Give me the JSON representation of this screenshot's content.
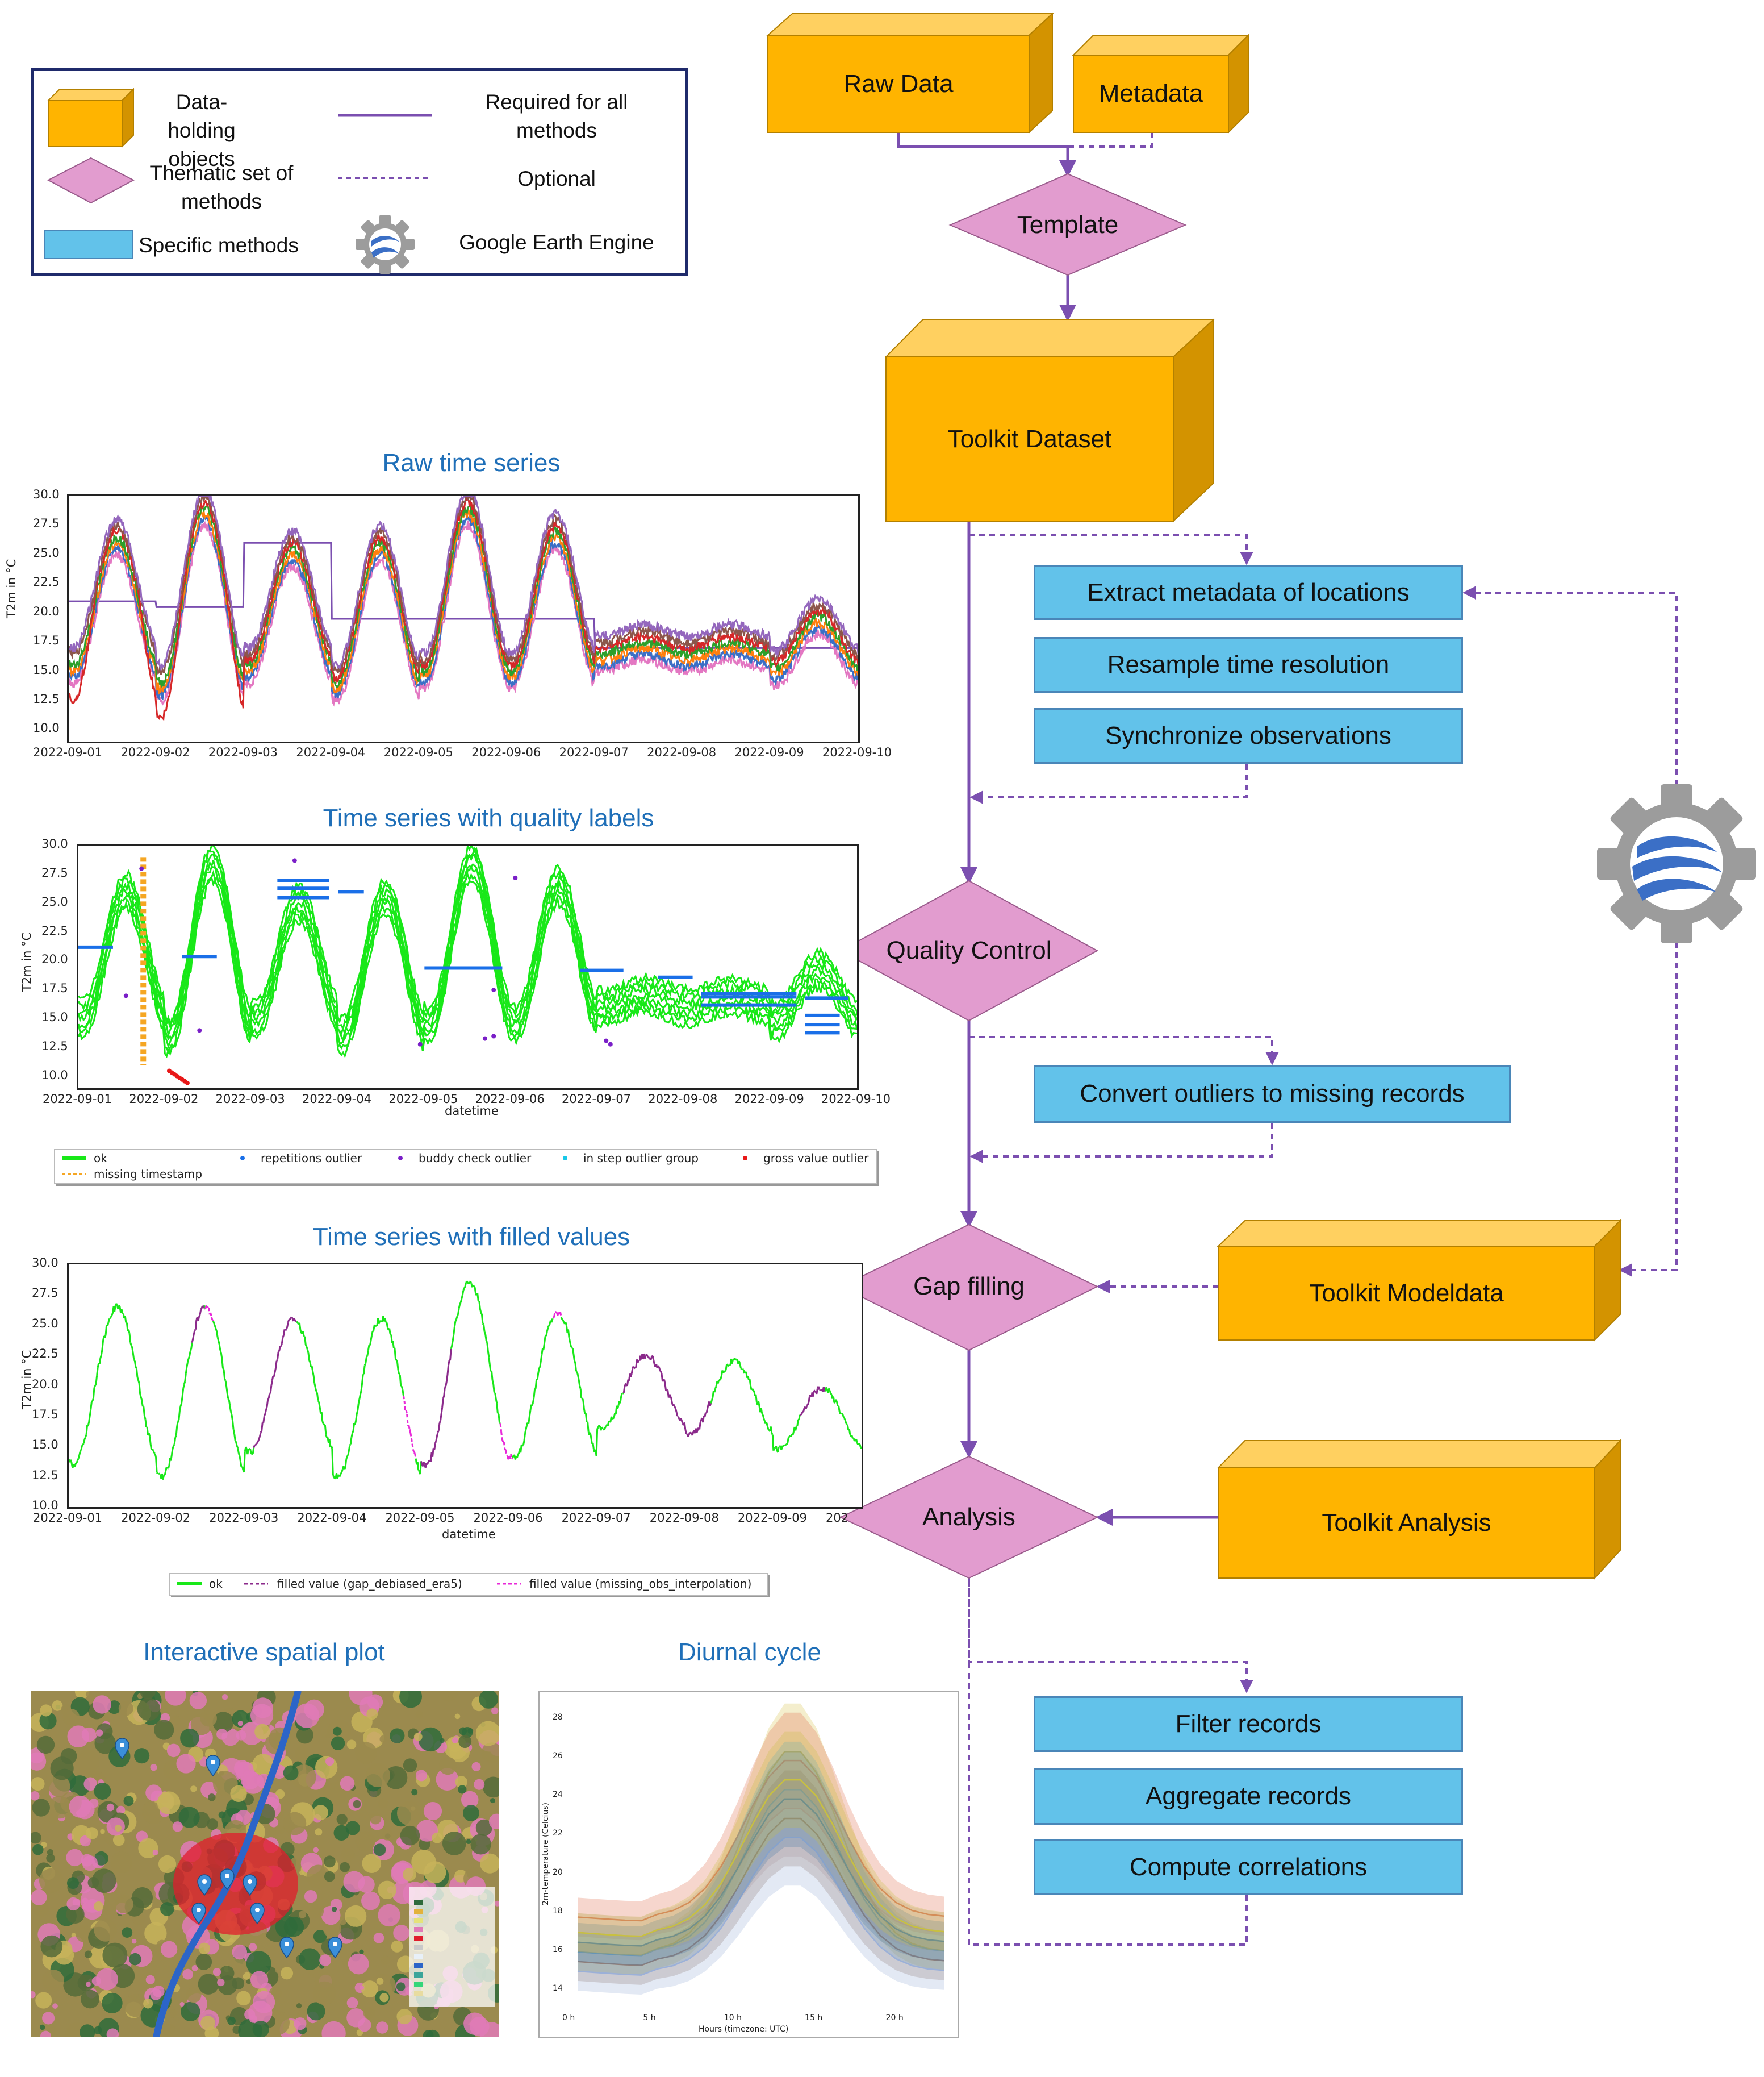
{
  "legend": {
    "data_holding": "Data-holding\nobjects",
    "required": "Required for all\nmethods",
    "thematic": "Thematic set of\nmethods",
    "optional": "Optional",
    "specific": "Specific methods",
    "gee": "Google Earth Engine"
  },
  "nodes": {
    "raw_data": "Raw Data",
    "metadata": "Metadata",
    "template": "Template",
    "toolkit_dataset": "Toolkit Dataset",
    "extract_metadata": "Extract metadata of locations",
    "resample": "Resample time resolution",
    "synchronize": "Synchronize observations",
    "quality_control": "Quality Control",
    "convert_outliers": "Convert outliers to missing records",
    "gap_filling": "Gap filling",
    "toolkit_modeldata": "Toolkit Modeldata",
    "analysis": "Analysis",
    "toolkit_analysis": "Toolkit Analysis",
    "filter_records": "Filter records",
    "aggregate_records": "Aggregate records",
    "compute_correlations": "Compute correlations"
  },
  "colors": {
    "orange_front": "#ffb400",
    "orange_top": "#ffd060",
    "orange_side": "#d39300",
    "pink": "#e29ccf",
    "blue": "#62c2ea",
    "purple": "#7b4fb0",
    "caption": "#1f6fb8"
  },
  "captions": {
    "raw": "Raw time series",
    "quality": "Time series with quality labels",
    "filled": "Time series with filled values",
    "spatial": "Interactive spatial plot",
    "diurnal": "Diurnal cycle"
  },
  "chart_data": [
    {
      "type": "line",
      "title": "Raw time series",
      "ylabel": "T2m in °C",
      "xlabel": "",
      "ylim": [
        9,
        30
      ],
      "yticks": [
        "30.0",
        "27.5",
        "25.0",
        "22.5",
        "20.0",
        "17.5",
        "15.0",
        "12.5",
        "10.0"
      ],
      "xticks": [
        "2022-09-01",
        "2022-09-02",
        "2022-09-03",
        "2022-09-04",
        "2022-09-05",
        "2022-09-06",
        "2022-09-07",
        "2022-09-08",
        "2022-09-09",
        "2022-09-10"
      ],
      "series_colors": [
        "#7b4fb0",
        "#e377c2",
        "#3b6fc6",
        "#ff7f0e",
        "#2ca02c",
        "#d62728",
        "#8c564b",
        "#9467bd"
      ]
    },
    {
      "type": "line",
      "title": "Time series with quality labels",
      "ylabel": "T2m in °C",
      "xlabel": "datetime",
      "ylim": [
        9,
        30
      ],
      "yticks": [
        "30.0",
        "27.5",
        "25.0",
        "22.5",
        "20.0",
        "17.5",
        "15.0",
        "12.5",
        "10.0"
      ],
      "xticks": [
        "2022-09-01",
        "2022-09-02",
        "2022-09-03",
        "2022-09-04",
        "2022-09-05",
        "2022-09-06",
        "2022-09-07",
        "2022-09-08",
        "2022-09-09",
        "2022-09-10"
      ],
      "legend": [
        "ok",
        "repetitions outlier",
        "buddy check outlier",
        "in step outlier group",
        "gross value outlier",
        "missing timestamp"
      ],
      "legend_colors": [
        "#18e818",
        "#1a6fe8",
        "#7a1fc8",
        "#18c8e8",
        "#e81818",
        "#f5a623"
      ]
    },
    {
      "type": "line",
      "title": "Time series with filled values",
      "ylabel": "T2m in °C",
      "xlabel": "datetime",
      "ylim": [
        10,
        30
      ],
      "yticks": [
        "30.0",
        "27.5",
        "25.0",
        "22.5",
        "20.0",
        "17.5",
        "15.0",
        "12.5",
        "10.0"
      ],
      "xticks": [
        "2022-09-01",
        "2022-09-02",
        "2022-09-03",
        "2022-09-04",
        "2022-09-05",
        "2022-09-06",
        "2022-09-07",
        "2022-09-08",
        "2022-09-09",
        "202"
      ],
      "legend": [
        "ok",
        "filled value (gap_debiased_era5)",
        "filled value (missing_obs_interpolation)"
      ],
      "legend_colors": [
        "#18e818",
        "#8b2a8b",
        "#e828d8"
      ]
    },
    {
      "type": "area",
      "title": "Diurnal cycle",
      "ylabel": "2m-temperature (Celcius)",
      "xlabel": "Hours (timezone: UTC)",
      "ylim": [
        13,
        29
      ],
      "yticks": [
        "28",
        "26",
        "24",
        "22",
        "20",
        "18",
        "16",
        "14"
      ],
      "xticks": [
        "0 h",
        "5 h",
        "10 h",
        "15 h",
        "20 h"
      ]
    }
  ]
}
